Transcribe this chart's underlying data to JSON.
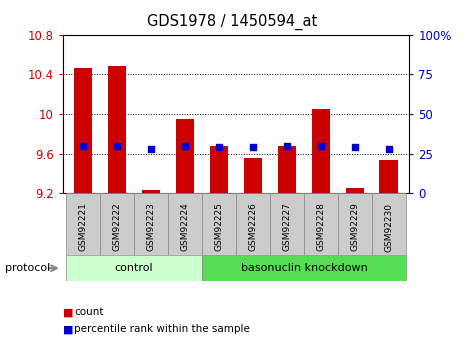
{
  "title": "GDS1978 / 1450594_at",
  "categories": [
    "GSM92221",
    "GSM92222",
    "GSM92223",
    "GSM92224",
    "GSM92225",
    "GSM92226",
    "GSM92227",
    "GSM92228",
    "GSM92229",
    "GSM92230"
  ],
  "bar_values": [
    10.46,
    10.48,
    9.23,
    9.95,
    9.68,
    9.55,
    9.68,
    10.05,
    9.25,
    9.53
  ],
  "blue_dot_values": [
    30,
    30,
    28,
    30,
    29,
    29,
    30,
    30,
    29,
    28
  ],
  "bar_color": "#cc0000",
  "dot_color": "#0000cc",
  "ylim_left": [
    9.2,
    10.8
  ],
  "ylim_right": [
    0,
    100
  ],
  "yticks_left": [
    9.2,
    9.6,
    10.0,
    10.4,
    10.8
  ],
  "yticks_right": [
    0,
    25,
    50,
    75,
    100
  ],
  "ytick_labels_left": [
    "9.2",
    "9.6",
    "10",
    "10.4",
    "10.8"
  ],
  "ytick_labels_right": [
    "0",
    "25",
    "50",
    "75",
    "100%"
  ],
  "group_control_color": "#ccffcc",
  "group_knockdown_color": "#55dd55",
  "group_border_color": "#999999",
  "protocol_label": "protocol",
  "legend_count_label": "count",
  "legend_pct_label": "percentile rank within the sample",
  "bar_color_left": "#cc0000",
  "tick_color_right": "#0000bb",
  "bar_width": 0.55,
  "tick_label_bg": "#cccccc",
  "plot_bg": "#ffffff"
}
